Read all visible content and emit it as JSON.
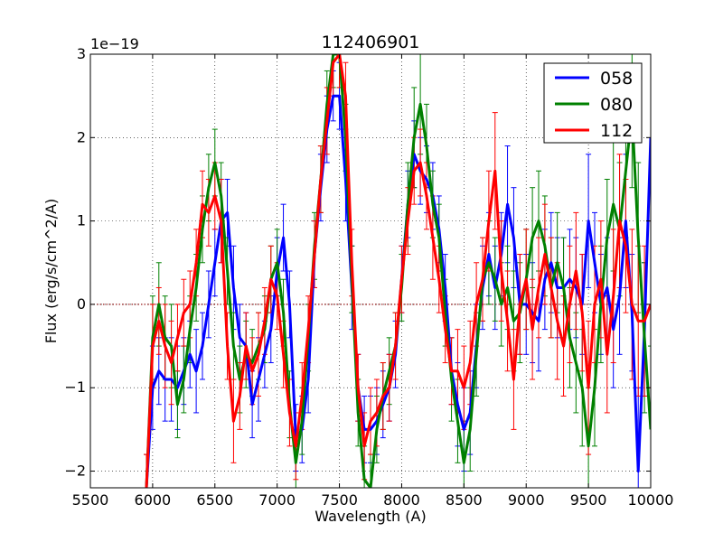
{
  "chart_data": {
    "type": "line",
    "title": "112406901",
    "xlabel": "Wavelength (A)",
    "ylabel": "Flux (erg/s/cm^2/A)",
    "offset_text": "1e−19",
    "xlim": [
      5500,
      10000
    ],
    "ylim": [
      -2.2,
      3.0
    ],
    "xticks": [
      5500,
      6000,
      6500,
      7000,
      7500,
      8000,
      8500,
      9000,
      9500,
      10000
    ],
    "xtick_labels": [
      "5500",
      "6000",
      "6500",
      "7000",
      "7500",
      "8000",
      "8500",
      "9000",
      "9500",
      "10000"
    ],
    "yticks": [
      -2,
      -1,
      0,
      1,
      2,
      3
    ],
    "ytick_labels": [
      "−2",
      "−1",
      "0",
      "1",
      "2",
      "3"
    ],
    "grid": true,
    "reference_line": {
      "y": 0,
      "color": "#8b0000",
      "style": "dotted"
    },
    "legend_position": "top-right",
    "series": [
      {
        "name": "058",
        "color": "#0000ff",
        "x": [
          5950,
          6000,
          6050,
          6100,
          6150,
          6200,
          6250,
          6300,
          6350,
          6400,
          6450,
          6500,
          6550,
          6600,
          6650,
          6700,
          6750,
          6800,
          6850,
          6900,
          6950,
          7000,
          7050,
          7100,
          7150,
          7200,
          7250,
          7300,
          7350,
          7400,
          7450,
          7500,
          7550,
          7600,
          7650,
          7700,
          7750,
          7800,
          7850,
          7900,
          7950,
          8000,
          8050,
          8100,
          8150,
          8200,
          8250,
          8300,
          8350,
          8400,
          8450,
          8500,
          8550,
          8600,
          8650,
          8700,
          8750,
          8800,
          8850,
          8900,
          8950,
          9000,
          9050,
          9100,
          9150,
          9200,
          9250,
          9300,
          9350,
          9400,
          9450,
          9500,
          9550,
          9600,
          9650,
          9700,
          9750,
          9800,
          9850,
          9900,
          9950,
          10000
        ],
        "values": [
          -2.2,
          -1.0,
          -0.8,
          -0.9,
          -0.9,
          -1.0,
          -0.8,
          -0.6,
          -0.8,
          -0.5,
          0.0,
          0.5,
          1.0,
          1.1,
          0.2,
          -0.4,
          -0.5,
          -1.2,
          -0.9,
          -0.6,
          -0.3,
          0.4,
          0.8,
          0.0,
          -1.6,
          -1.5,
          -0.9,
          0.6,
          1.4,
          2.1,
          2.5,
          2.5,
          1.5,
          0.2,
          -1.0,
          -1.5,
          -1.5,
          -1.4,
          -1.2,
          -1.0,
          -0.6,
          0.3,
          1.2,
          1.8,
          1.6,
          1.5,
          1.3,
          0.9,
          0.2,
          -0.8,
          -1.2,
          -1.5,
          -1.3,
          -0.5,
          0.2,
          0.6,
          0.2,
          0.6,
          1.2,
          0.8,
          0.0,
          0.0,
          -0.1,
          -0.2,
          0.3,
          0.5,
          0.2,
          0.2,
          0.3,
          0.2,
          0.0,
          1.0,
          0.5,
          0.0,
          0.2,
          -0.3,
          0.1,
          1.0,
          -0.1,
          -2.0,
          -0.3,
          2.0
        ],
        "errors": [
          0.4,
          0.5,
          0.4,
          0.5,
          0.5,
          0.5,
          0.4,
          0.4,
          0.5,
          0.4,
          0.4,
          0.4,
          0.5,
          0.4,
          0.5,
          0.4,
          0.4,
          0.4,
          0.5,
          0.4,
          0.4,
          0.4,
          0.4,
          0.4,
          0.4,
          0.4,
          0.4,
          0.4,
          0.4,
          0.4,
          0.3,
          0.4,
          0.5,
          0.5,
          0.4,
          0.4,
          0.4,
          0.4,
          0.4,
          0.4,
          0.4,
          0.4,
          0.4,
          0.4,
          0.4,
          0.4,
          0.4,
          0.4,
          0.4,
          0.4,
          0.5,
          0.5,
          0.5,
          0.5,
          0.5,
          0.5,
          0.5,
          0.5,
          0.7,
          0.6,
          0.6,
          0.6,
          0.6,
          0.6,
          0.6,
          0.6,
          0.6,
          0.6,
          0.6,
          0.6,
          0.6,
          0.8,
          0.6,
          0.6,
          0.6,
          0.7,
          0.7,
          0.8,
          0.7,
          1.0,
          0.8,
          1.0
        ]
      },
      {
        "name": "080",
        "color": "#008000",
        "x": [
          5950,
          6000,
          6050,
          6100,
          6150,
          6200,
          6250,
          6300,
          6350,
          6400,
          6450,
          6500,
          6550,
          6600,
          6650,
          6700,
          6750,
          6800,
          6850,
          6900,
          6950,
          7000,
          7050,
          7100,
          7150,
          7200,
          7250,
          7300,
          7350,
          7400,
          7450,
          7500,
          7550,
          7600,
          7650,
          7700,
          7750,
          7800,
          7850,
          7900,
          7950,
          8000,
          8050,
          8100,
          8150,
          8200,
          8250,
          8300,
          8350,
          8400,
          8450,
          8500,
          8550,
          8600,
          8650,
          8700,
          8750,
          8800,
          8850,
          8900,
          8950,
          9000,
          9050,
          9100,
          9150,
          9200,
          9250,
          9300,
          9350,
          9400,
          9450,
          9500,
          9550,
          9600,
          9650,
          9700,
          9750,
          9800,
          9850,
          9900,
          9950,
          10000
        ],
        "values": [
          -2.2,
          -0.4,
          0.0,
          -0.4,
          -0.5,
          -1.2,
          -0.9,
          -0.3,
          0.2,
          0.9,
          1.4,
          1.7,
          1.3,
          0.4,
          -0.5,
          -0.9,
          -0.6,
          -0.7,
          -0.5,
          -0.3,
          0.3,
          0.5,
          -0.1,
          -1.2,
          -1.9,
          -1.4,
          -0.4,
          0.7,
          1.5,
          2.4,
          3.0,
          3.0,
          2.0,
          0.3,
          -1.3,
          -2.1,
          -2.2,
          -1.5,
          -1.1,
          -0.8,
          -0.5,
          0.2,
          1.2,
          2.0,
          2.4,
          1.9,
          1.2,
          0.8,
          -0.1,
          -0.9,
          -1.4,
          -1.9,
          -1.5,
          -0.6,
          0.3,
          0.5,
          0.3,
          0.0,
          0.2,
          -0.2,
          -0.1,
          0.3,
          0.8,
          1.0,
          0.7,
          0.2,
          0.5,
          0.2,
          -0.4,
          -0.7,
          -1.0,
          -1.7,
          -1.0,
          0.0,
          0.8,
          1.2,
          0.9,
          1.6,
          2.3,
          0.8,
          -0.4,
          -1.5
        ],
        "errors": [
          0.4,
          0.5,
          0.5,
          0.5,
          0.5,
          0.4,
          0.4,
          0.4,
          0.4,
          0.4,
          0.4,
          0.4,
          0.4,
          0.4,
          0.4,
          0.4,
          0.4,
          0.4,
          0.4,
          0.4,
          0.4,
          0.4,
          0.4,
          0.4,
          0.4,
          0.4,
          0.4,
          0.4,
          0.4,
          0.4,
          0.4,
          0.4,
          0.4,
          0.4,
          0.4,
          0.4,
          0.4,
          0.4,
          0.4,
          0.4,
          0.4,
          0.4,
          0.5,
          0.6,
          0.6,
          0.5,
          0.4,
          0.4,
          0.4,
          0.5,
          0.5,
          0.5,
          0.5,
          0.5,
          0.5,
          0.5,
          0.5,
          0.5,
          0.5,
          0.6,
          0.6,
          0.6,
          0.6,
          0.6,
          0.6,
          0.6,
          0.6,
          0.6,
          0.6,
          0.6,
          0.7,
          0.7,
          0.7,
          0.7,
          0.7,
          0.8,
          0.8,
          0.8,
          0.9,
          0.9,
          0.9,
          1.0
        ]
      },
      {
        "name": "112",
        "color": "#ff0000",
        "x": [
          5950,
          6000,
          6050,
          6100,
          6150,
          6200,
          6250,
          6300,
          6350,
          6400,
          6450,
          6500,
          6550,
          6600,
          6650,
          6700,
          6750,
          6800,
          6850,
          6900,
          6950,
          7000,
          7050,
          7100,
          7150,
          7200,
          7250,
          7300,
          7350,
          7400,
          7450,
          7500,
          7550,
          7600,
          7650,
          7700,
          7750,
          7800,
          7850,
          7900,
          7950,
          8000,
          8050,
          8100,
          8150,
          8200,
          8250,
          8300,
          8350,
          8400,
          8450,
          8500,
          8550,
          8600,
          8650,
          8700,
          8750,
          8800,
          8850,
          8900,
          8950,
          9000,
          9050,
          9100,
          9150,
          9200,
          9250,
          9300,
          9350,
          9400,
          9450,
          9500,
          9550,
          9600,
          9650,
          9700,
          9750,
          9800,
          9850,
          9900,
          9950,
          10000
        ],
        "values": [
          -2.2,
          -0.5,
          -0.2,
          -0.5,
          -0.7,
          -0.4,
          -0.1,
          0.0,
          0.5,
          1.2,
          1.1,
          1.3,
          1.0,
          -0.5,
          -1.4,
          -1.1,
          -0.5,
          -0.8,
          -0.6,
          -0.2,
          0.3,
          0.1,
          -0.6,
          -1.3,
          -1.7,
          -1.1,
          -0.3,
          0.6,
          1.5,
          2.2,
          2.9,
          3.0,
          2.5,
          0.5,
          -1.0,
          -1.7,
          -1.4,
          -1.3,
          -1.1,
          -1.0,
          -0.5,
          0.3,
          1.0,
          1.6,
          1.7,
          1.3,
          0.8,
          0.3,
          -0.3,
          -0.8,
          -0.8,
          -1.0,
          -0.7,
          0.0,
          0.3,
          1.0,
          1.6,
          0.4,
          -0.2,
          -0.9,
          0.0,
          0.3,
          -0.3,
          0.2,
          0.6,
          0.2,
          -0.2,
          -0.5,
          0.0,
          0.4,
          -0.1,
          -1.0,
          0.0,
          0.3,
          -0.6,
          0.1,
          1.0,
          0.7,
          0.0,
          -0.2,
          -0.2,
          0.0
        ],
        "errors": [
          0.4,
          0.5,
          0.4,
          0.5,
          0.5,
          0.4,
          0.4,
          0.4,
          0.4,
          0.4,
          0.4,
          0.4,
          0.5,
          0.4,
          0.5,
          0.4,
          0.4,
          0.4,
          0.5,
          0.4,
          0.4,
          0.4,
          0.4,
          0.4,
          0.4,
          0.4,
          0.4,
          0.4,
          0.4,
          0.4,
          0.4,
          0.4,
          0.4,
          0.4,
          0.4,
          0.4,
          0.4,
          0.4,
          0.4,
          0.4,
          0.4,
          0.4,
          0.4,
          0.4,
          0.4,
          0.4,
          0.5,
          0.4,
          0.4,
          0.4,
          0.5,
          0.5,
          0.5,
          0.5,
          0.5,
          0.6,
          0.7,
          0.6,
          0.6,
          0.6,
          0.6,
          0.6,
          0.6,
          0.6,
          0.6,
          0.6,
          0.7,
          0.6,
          0.7,
          0.7,
          0.7,
          0.8,
          0.7,
          0.7,
          0.7,
          0.8,
          0.8,
          0.8,
          0.9,
          0.9,
          0.9,
          1.0
        ]
      }
    ]
  }
}
